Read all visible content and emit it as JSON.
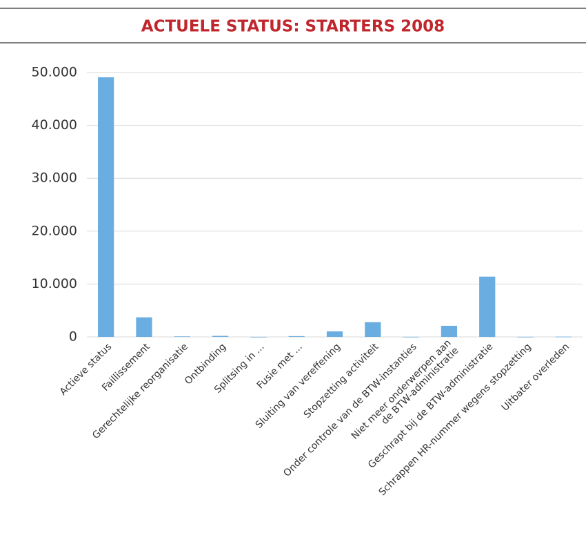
{
  "chart_data": {
    "type": "bar",
    "title": "ACTUELE STATUS: STARTERS 2008",
    "categories": [
      "Actieve status",
      "Faillissement",
      "Gerechtelijke reorganisatie",
      "Ontbinding",
      "Splitsing in ...",
      "Fusie met ...",
      "Sluiting van vereffening",
      "Stopzetting activiteit",
      "Onder controle van de BTW-instanties",
      [
        "Niet meer onderwerpen aan",
        "de BTW-administratie"
      ],
      "Geschrapt bij de BTW-administratie",
      "Schrappen HR-nummer wegens stopzetting",
      "Uitbater overleden"
    ],
    "values": [
      49100,
      3700,
      100,
      200,
      10,
      150,
      1050,
      2800,
      20,
      2100,
      11400,
      20,
      50
    ],
    "color": "#6aade0",
    "ylim": [
      0,
      50000
    ],
    "yticks": [
      0,
      {
        "value": 10000,
        "label": "10.000"
      },
      {
        "value": 20000,
        "label": "20.000"
      },
      {
        "value": 30000,
        "label": "30.000"
      },
      {
        "value": 40000,
        "label": "40.000"
      },
      {
        "value": 50000,
        "label": "50.000"
      }
    ],
    "grid": true
  }
}
